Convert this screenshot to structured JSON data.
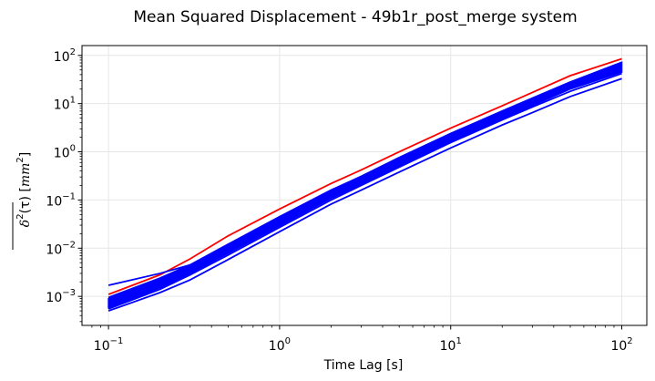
{
  "chart_data": {
    "type": "line",
    "title": "Mean Squared Displacement - 49b1r_post_merge system",
    "xlabel": "Time Lag [s]",
    "ylabel": {
      "symbol": "δ",
      "superscript": "2",
      "argument": "(τ) [",
      "unit": "mm",
      "unit_superscript": "2",
      "close": "]"
    },
    "x_scale": "log",
    "y_scale": "log",
    "xlim": [
      0.07,
      140
    ],
    "ylim": [
      0.00025,
      160
    ],
    "grid": true,
    "x_ticks": [
      {
        "base": "10",
        "exp": "−1",
        "value": 0.1
      },
      {
        "base": "10",
        "exp": "0",
        "value": 1
      },
      {
        "base": "10",
        "exp": "1",
        "value": 10
      },
      {
        "base": "10",
        "exp": "2",
        "value": 100
      }
    ],
    "y_ticks": [
      {
        "base": "10",
        "exp": "−3",
        "value": 0.001
      },
      {
        "base": "10",
        "exp": "−2",
        "value": 0.01
      },
      {
        "base": "10",
        "exp": "−1",
        "value": 0.1
      },
      {
        "base": "10",
        "exp": "0",
        "value": 1
      },
      {
        "base": "10",
        "exp": "1",
        "value": 10
      },
      {
        "base": "10",
        "exp": "2",
        "value": 100
      }
    ],
    "x": [
      0.1,
      0.2,
      0.3,
      0.5,
      1,
      2,
      3,
      5,
      10,
      20,
      30,
      50,
      100
    ],
    "series": [
      {
        "color": "#ff0000",
        "values": [
          0.0011,
          0.0028,
          0.006,
          0.018,
          0.065,
          0.22,
          0.42,
          1.0,
          3.1,
          9.0,
          17,
          38,
          85
        ]
      },
      {
        "color": "#0000ff",
        "values": [
          0.0017,
          0.003,
          0.0045,
          0.012,
          0.045,
          0.16,
          0.3,
          0.72,
          2.2,
          6.2,
          11,
          23,
          60
        ]
      },
      {
        "color": "#0000ff",
        "values": [
          0.00095,
          0.0024,
          0.0045,
          0.012,
          0.045,
          0.16,
          0.31,
          0.76,
          2.4,
          7.0,
          13,
          28,
          72
        ]
      },
      {
        "color": "#0000ff",
        "values": [
          0.00055,
          0.0014,
          0.0028,
          0.0072,
          0.027,
          0.1,
          0.2,
          0.48,
          1.55,
          4.6,
          8.5,
          18,
          42
        ]
      },
      {
        "color": "#0000ff",
        "values": [
          0.0005,
          0.0012,
          0.0022,
          0.0058,
          0.022,
          0.082,
          0.16,
          0.38,
          1.2,
          3.6,
          6.5,
          14,
          33
        ]
      }
    ],
    "band": {
      "color": "#0000ff",
      "lower": [
        0.00058,
        0.0015,
        0.003,
        0.0078,
        0.029,
        0.108,
        0.21,
        0.5,
        1.6,
        4.8,
        9.0,
        20,
        45
      ],
      "upper": [
        0.0009,
        0.0023,
        0.0045,
        0.012,
        0.045,
        0.16,
        0.31,
        0.75,
        2.4,
        7.0,
        13,
        28,
        72
      ]
    }
  }
}
